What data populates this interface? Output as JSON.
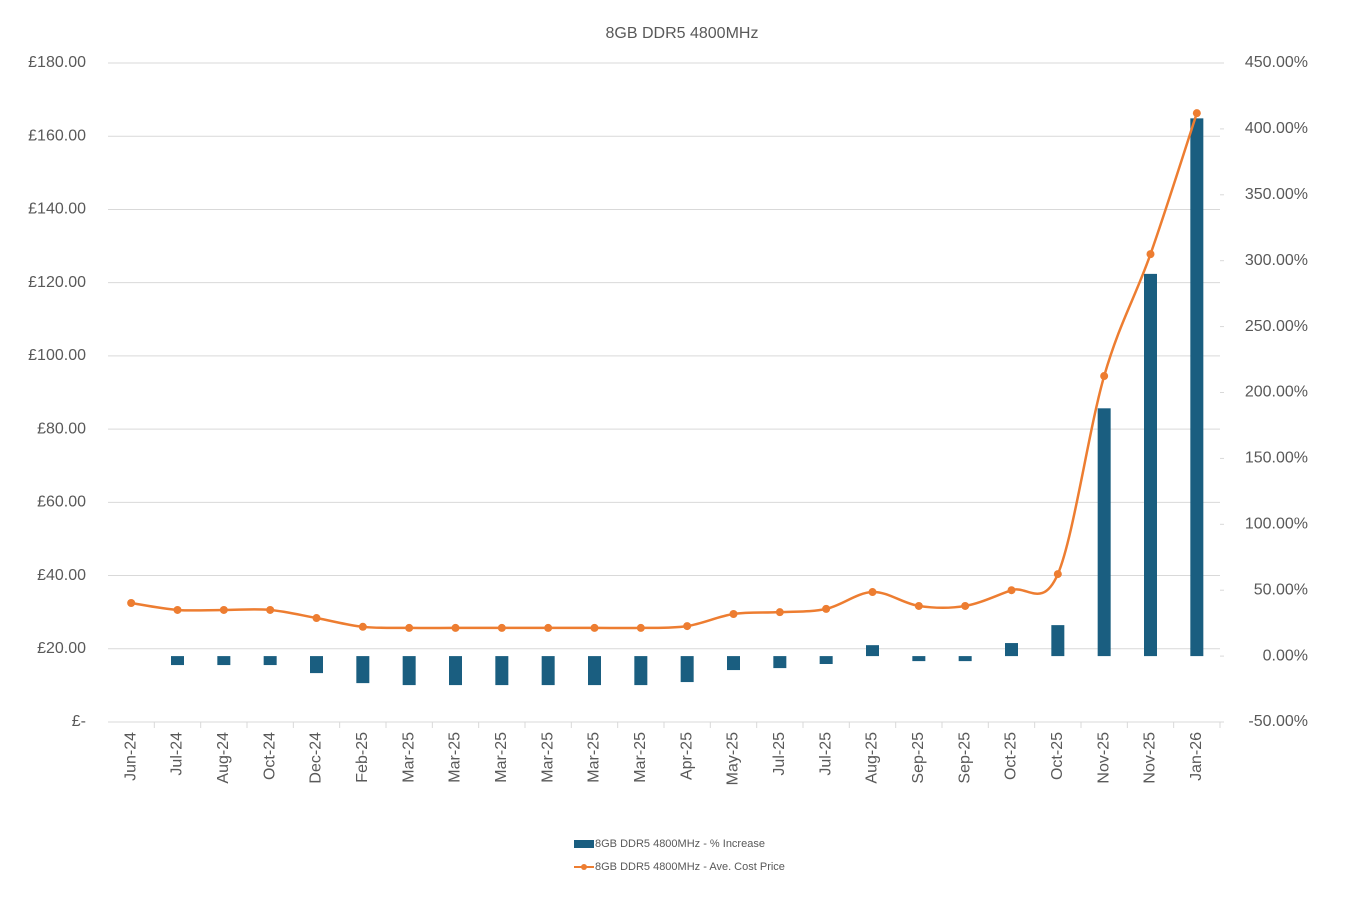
{
  "chart_data": {
    "type": "bar-line",
    "title": "8GB DDR5 4800MHz",
    "categories": [
      "Jun-24",
      "Jul-24",
      "Aug-24",
      "Oct-24",
      "Dec-24",
      "Feb-25",
      "Mar-25",
      "Mar-25",
      "Mar-25",
      "Mar-25",
      "Mar-25",
      "Mar-25",
      "Apr-25",
      "May-25",
      "Jul-25",
      "Jul-25",
      "Aug-25",
      "Sep-25",
      "Sep-25",
      "Oct-25",
      "Oct-25",
      "Nov-25",
      "Nov-25",
      "Jan-26"
    ],
    "series": [
      {
        "name": "8GB DDR5 4800MHz - % Increase",
        "type": "bar",
        "axis": "y2",
        "color": "#1a5e80",
        "values": [
          null,
          -6.8,
          -6.8,
          -6.8,
          -12.9,
          -20.5,
          -22,
          -22,
          -22,
          -22,
          -22,
          -22,
          -19.7,
          -10.6,
          -9.1,
          -6,
          8.3,
          -3.8,
          -3.8,
          9.9,
          23.5,
          188,
          290,
          408
        ]
      },
      {
        "name": "8GB DDR5 4800MHz - Ave. Cost Price",
        "type": "line",
        "axis": "y",
        "color": "#ed7d31",
        "values": [
          32.5,
          30.6,
          30.6,
          30.6,
          28.4,
          26,
          25.7,
          25.7,
          25.7,
          25.7,
          25.7,
          25.7,
          26.2,
          29.5,
          30,
          30.9,
          35.5,
          31.7,
          31.7,
          36,
          40.4,
          94.5,
          127.8,
          166.3
        ]
      }
    ],
    "ylim": [
      0,
      180
    ],
    "yticks": [
      {
        "value": 0,
        "label": "£-"
      },
      {
        "value": 20,
        "label": "£20.00"
      },
      {
        "value": 40,
        "label": "£40.00"
      },
      {
        "value": 60,
        "label": "£60.00"
      },
      {
        "value": 80,
        "label": "£80.00"
      },
      {
        "value": 100,
        "label": "£100.00"
      },
      {
        "value": 120,
        "label": "£120.00"
      },
      {
        "value": 140,
        "label": "£140.00"
      },
      {
        "value": 160,
        "label": "£160.00"
      },
      {
        "value": 180,
        "label": "£180.00"
      }
    ],
    "y2lim": [
      -50,
      450
    ],
    "y2ticks": [
      {
        "value": -50,
        "label": "-50.00%"
      },
      {
        "value": 0,
        "label": "0.00%"
      },
      {
        "value": 50,
        "label": "50.00%"
      },
      {
        "value": 100,
        "label": "100.00%"
      },
      {
        "value": 150,
        "label": "150.00%"
      },
      {
        "value": 200,
        "label": "200.00%"
      },
      {
        "value": 250,
        "label": "250.00%"
      },
      {
        "value": 300,
        "label": "300.00%"
      },
      {
        "value": 350,
        "label": "350.00%"
      },
      {
        "value": 400,
        "label": "400.00%"
      },
      {
        "value": 450,
        "label": "450.00%"
      }
    ],
    "grid": true,
    "legend": "bottom"
  }
}
